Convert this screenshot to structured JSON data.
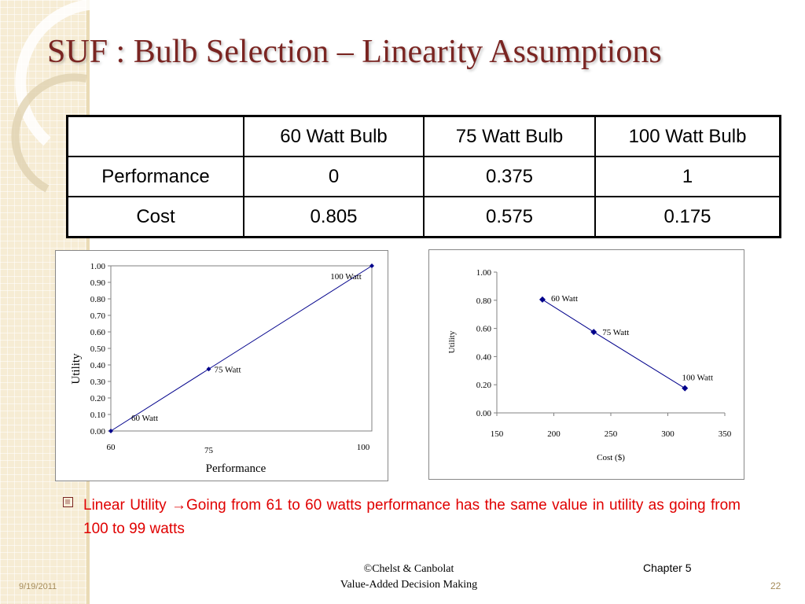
{
  "slide": {
    "title": "SUF : Bulb Selection – Linearity Assumptions",
    "bullet_icon": "checkbox-bullet-icon",
    "bullet_text": "Linear Utility →Going from 61 to 60 watts performance has the same value in utility as going from 100 to 99 watts",
    "footer_date": "9/19/2011",
    "footer_credit_line1": "©Chelst & Canbolat",
    "footer_credit_line2": "Value-Added Decision Making",
    "footer_chapter": "Chapter 5",
    "footer_page": "22",
    "colors": {
      "title": "#7a2522",
      "bullet_text": "#e00000",
      "series": "#00008b"
    }
  },
  "table": {
    "header": [
      "",
      "60 Watt Bulb",
      "75 Watt Bulb",
      "100 Watt Bulb"
    ],
    "rows": [
      [
        "Performance",
        "0",
        "0.375",
        "1"
      ],
      [
        "Cost",
        "0.805",
        "0.575",
        "0.175"
      ]
    ]
  },
  "chart_data": [
    {
      "type": "line",
      "title": "",
      "xlabel": "Performance",
      "ylabel": "Utility",
      "x": [
        60,
        75,
        100
      ],
      "y": [
        0,
        0.375,
        1
      ],
      "point_labels": [
        "60 Watt",
        "75 Watt",
        "100 Watt"
      ],
      "x_ticks": [
        "60",
        "75",
        "100"
      ],
      "y_ticks": [
        "0.00",
        "0.10",
        "0.20",
        "0.30",
        "0.40",
        "0.50",
        "0.60",
        "0.70",
        "0.80",
        "0.90",
        "1.00"
      ],
      "xlim": [
        60,
        100
      ],
      "ylim": [
        0,
        1
      ],
      "grid": false,
      "legend": "none",
      "marker": "diamond"
    },
    {
      "type": "line",
      "title": "",
      "xlabel": "Cost ($)",
      "ylabel": "Utility",
      "x": [
        190,
        235,
        315
      ],
      "y": [
        0.805,
        0.575,
        0.175
      ],
      "point_labels": [
        "60 Watt",
        "75 Watt",
        "100 Watt"
      ],
      "x_ticks": [
        "150",
        "200",
        "250",
        "300",
        "350"
      ],
      "y_ticks": [
        "0.00",
        "0.20",
        "0.40",
        "0.60",
        "0.80",
        "1.00"
      ],
      "xlim": [
        150,
        350
      ],
      "ylim": [
        0,
        1
      ],
      "grid": false,
      "legend": "none",
      "marker": "diamond"
    }
  ]
}
